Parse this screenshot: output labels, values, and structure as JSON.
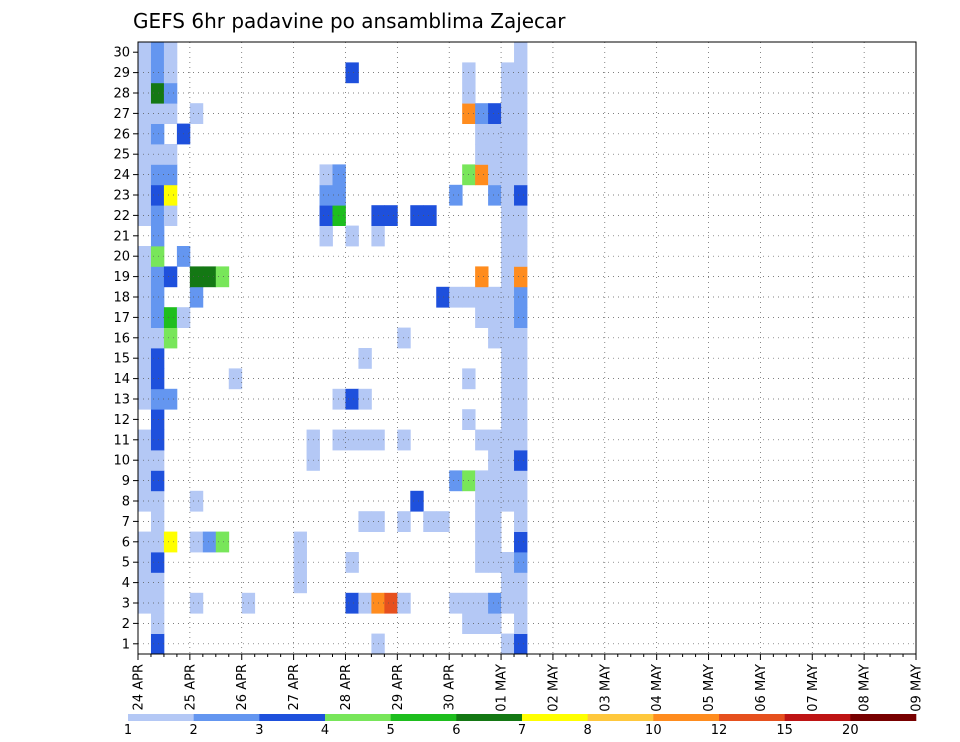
{
  "chart_data": {
    "type": "heatmap",
    "title": "GEFS 6hr padavine po ansamblima Zajecar",
    "xlabel": "",
    "ylabel": "",
    "x_tick_labels": [
      "24 APR",
      "25 APR",
      "26 APR",
      "27 APR",
      "28 APR",
      "29 APR",
      "30 APR",
      "01 MAY",
      "02 MAY",
      "03 MAY",
      "04 MAY",
      "05 MAY",
      "06 MAY",
      "07 MAY",
      "08 MAY",
      "09 MAY"
    ],
    "y_tick_labels": [
      "1",
      "2",
      "3",
      "4",
      "5",
      "6",
      "7",
      "8",
      "9",
      "10",
      "11",
      "12",
      "13",
      "14",
      "15",
      "16",
      "17",
      "18",
      "19",
      "20",
      "21",
      "22",
      "23",
      "24",
      "25",
      "26",
      "27",
      "28",
      "29",
      "30"
    ],
    "time_steps_per_day": 4,
    "xlim_steps": [
      0,
      60
    ],
    "ylim_members": [
      0.5,
      30.5
    ],
    "grid": true,
    "colorbar": {
      "labels": [
        "1",
        "2",
        "3",
        "4",
        "5",
        "6",
        "7",
        "8",
        "10",
        "12",
        "15",
        "20"
      ],
      "colors": [
        "#b4c8f5",
        "#6496f0",
        "#1e50dc",
        "#78e65a",
        "#1ebe1e",
        "#147814",
        "#ffff00",
        "#ffc83c",
        "#ff8c1e",
        "#e6501e",
        "#be1414",
        "#780000"
      ]
    },
    "cells": [
      [
        0,
        3,
        1
      ],
      [
        0,
        4,
        1
      ],
      [
        0,
        5,
        1
      ],
      [
        0,
        6,
        1
      ],
      [
        0,
        8,
        1
      ],
      [
        0,
        9,
        1
      ],
      [
        0,
        10,
        1
      ],
      [
        0,
        11,
        1
      ],
      [
        0,
        13,
        1
      ],
      [
        0,
        14,
        1
      ],
      [
        0,
        15,
        1
      ],
      [
        0,
        16,
        1
      ],
      [
        0,
        17,
        1
      ],
      [
        0,
        18,
        1
      ],
      [
        0,
        19,
        1
      ],
      [
        0,
        20,
        1
      ],
      [
        0,
        22,
        1
      ],
      [
        0,
        23,
        1
      ],
      [
        0,
        24,
        1
      ],
      [
        0,
        25,
        1
      ],
      [
        0,
        26,
        1
      ],
      [
        0,
        27,
        1
      ],
      [
        0,
        28,
        1
      ],
      [
        0,
        29,
        1
      ],
      [
        0,
        30,
        1
      ],
      [
        1,
        1,
        3
      ],
      [
        1,
        2,
        1
      ],
      [
        1,
        3,
        1
      ],
      [
        1,
        4,
        1
      ],
      [
        1,
        5,
        3
      ],
      [
        1,
        6,
        1
      ],
      [
        1,
        7,
        1
      ],
      [
        1,
        8,
        1
      ],
      [
        1,
        9,
        3
      ],
      [
        1,
        10,
        1
      ],
      [
        1,
        11,
        3
      ],
      [
        1,
        12,
        3
      ],
      [
        1,
        13,
        2
      ],
      [
        1,
        14,
        3
      ],
      [
        1,
        15,
        3
      ],
      [
        1,
        16,
        1
      ],
      [
        1,
        17,
        2
      ],
      [
        1,
        18,
        2
      ],
      [
        1,
        19,
        2
      ],
      [
        1,
        20,
        4
      ],
      [
        1,
        21,
        2
      ],
      [
        1,
        22,
        2
      ],
      [
        1,
        23,
        3
      ],
      [
        1,
        24,
        2
      ],
      [
        1,
        25,
        1
      ],
      [
        1,
        26,
        2
      ],
      [
        1,
        27,
        1
      ],
      [
        1,
        28,
        6
      ],
      [
        1,
        29,
        2
      ],
      [
        1,
        30,
        2
      ],
      [
        2,
        6,
        7
      ],
      [
        2,
        13,
        2
      ],
      [
        2,
        16,
        4
      ],
      [
        2,
        17,
        5
      ],
      [
        2,
        19,
        3
      ],
      [
        2,
        22,
        1
      ],
      [
        2,
        23,
        7
      ],
      [
        2,
        24,
        2
      ],
      [
        2,
        25,
        1
      ],
      [
        2,
        27,
        1
      ],
      [
        2,
        28,
        2
      ],
      [
        2,
        29,
        1
      ],
      [
        2,
        30,
        1
      ],
      [
        3,
        17,
        1
      ],
      [
        3,
        20,
        2
      ],
      [
        3,
        26,
        3
      ],
      [
        4,
        3,
        1
      ],
      [
        4,
        6,
        1
      ],
      [
        4,
        8,
        1
      ],
      [
        4,
        18,
        2
      ],
      [
        4,
        19,
        6
      ],
      [
        4,
        27,
        1
      ],
      [
        5,
        6,
        2
      ],
      [
        5,
        19,
        6
      ],
      [
        6,
        6,
        4
      ],
      [
        6,
        19,
        4
      ],
      [
        7,
        14,
        1
      ],
      [
        8,
        3,
        1
      ],
      [
        12,
        4,
        1
      ],
      [
        12,
        5,
        1
      ],
      [
        12,
        6,
        1
      ],
      [
        13,
        10,
        1
      ],
      [
        13,
        11,
        1
      ],
      [
        14,
        21,
        1
      ],
      [
        14,
        22,
        3
      ],
      [
        14,
        23,
        2
      ],
      [
        14,
        24,
        1
      ],
      [
        15,
        11,
        1
      ],
      [
        15,
        13,
        1
      ],
      [
        15,
        22,
        5
      ],
      [
        15,
        23,
        2
      ],
      [
        15,
        24,
        2
      ],
      [
        16,
        3,
        3
      ],
      [
        16,
        5,
        1
      ],
      [
        16,
        11,
        1
      ],
      [
        16,
        13,
        3
      ],
      [
        16,
        21,
        1
      ],
      [
        16,
        29,
        3
      ],
      [
        17,
        3,
        1
      ],
      [
        17,
        7,
        1
      ],
      [
        17,
        11,
        1
      ],
      [
        17,
        13,
        1
      ],
      [
        17,
        15,
        1
      ],
      [
        18,
        1,
        1
      ],
      [
        18,
        3,
        9
      ],
      [
        18,
        7,
        1
      ],
      [
        18,
        11,
        1
      ],
      [
        18,
        21,
        1
      ],
      [
        18,
        22,
        3
      ],
      [
        19,
        3,
        10
      ],
      [
        19,
        22,
        3
      ],
      [
        20,
        3,
        1
      ],
      [
        20,
        7,
        1
      ],
      [
        20,
        11,
        1
      ],
      [
        20,
        16,
        1
      ],
      [
        21,
        8,
        3
      ],
      [
        21,
        22,
        3
      ],
      [
        22,
        7,
        1
      ],
      [
        22,
        22,
        3
      ],
      [
        23,
        7,
        1
      ],
      [
        23,
        18,
        3
      ],
      [
        24,
        3,
        1
      ],
      [
        24,
        9,
        2
      ],
      [
        24,
        18,
        1
      ],
      [
        24,
        23,
        2
      ],
      [
        25,
        2,
        1
      ],
      [
        25,
        3,
        1
      ],
      [
        25,
        9,
        4
      ],
      [
        25,
        12,
        1
      ],
      [
        25,
        14,
        1
      ],
      [
        25,
        18,
        1
      ],
      [
        25,
        24,
        4
      ],
      [
        25,
        27,
        9
      ],
      [
        25,
        28,
        1
      ],
      [
        25,
        29,
        1
      ],
      [
        26,
        2,
        1
      ],
      [
        26,
        3,
        1
      ],
      [
        26,
        5,
        1
      ],
      [
        26,
        6,
        1
      ],
      [
        26,
        7,
        1
      ],
      [
        26,
        8,
        1
      ],
      [
        26,
        9,
        1
      ],
      [
        26,
        11,
        1
      ],
      [
        26,
        17,
        1
      ],
      [
        26,
        18,
        1
      ],
      [
        26,
        19,
        9
      ],
      [
        26,
        24,
        9
      ],
      [
        26,
        25,
        1
      ],
      [
        26,
        26,
        1
      ],
      [
        26,
        27,
        2
      ],
      [
        27,
        2,
        1
      ],
      [
        27,
        3,
        2
      ],
      [
        27,
        5,
        1
      ],
      [
        27,
        6,
        1
      ],
      [
        27,
        7,
        1
      ],
      [
        27,
        8,
        1
      ],
      [
        27,
        9,
        1
      ],
      [
        27,
        10,
        1
      ],
      [
        27,
        11,
        1
      ],
      [
        27,
        16,
        1
      ],
      [
        27,
        17,
        1
      ],
      [
        27,
        18,
        1
      ],
      [
        27,
        23,
        2
      ],
      [
        27,
        24,
        1
      ],
      [
        27,
        25,
        1
      ],
      [
        27,
        26,
        1
      ],
      [
        27,
        27,
        3
      ],
      [
        28,
        1,
        1
      ],
      [
        28,
        3,
        1
      ],
      [
        28,
        4,
        1
      ],
      [
        28,
        5,
        1
      ],
      [
        28,
        8,
        1
      ],
      [
        28,
        9,
        1
      ],
      [
        28,
        10,
        1
      ],
      [
        28,
        11,
        1
      ],
      [
        28,
        12,
        1
      ],
      [
        28,
        13,
        1
      ],
      [
        28,
        14,
        1
      ],
      [
        28,
        15,
        1
      ],
      [
        28,
        16,
        1
      ],
      [
        28,
        17,
        1
      ],
      [
        28,
        18,
        1
      ],
      [
        28,
        19,
        1
      ],
      [
        28,
        20,
        1
      ],
      [
        28,
        21,
        1
      ],
      [
        28,
        22,
        1
      ],
      [
        28,
        23,
        1
      ],
      [
        28,
        24,
        1
      ],
      [
        28,
        25,
        1
      ],
      [
        28,
        26,
        1
      ],
      [
        28,
        27,
        1
      ],
      [
        28,
        28,
        1
      ],
      [
        28,
        29,
        1
      ],
      [
        29,
        1,
        3
      ],
      [
        29,
        2,
        1
      ],
      [
        29,
        3,
        1
      ],
      [
        29,
        4,
        1
      ],
      [
        29,
        5,
        2
      ],
      [
        29,
        6,
        3
      ],
      [
        29,
        7,
        1
      ],
      [
        29,
        8,
        1
      ],
      [
        29,
        9,
        1
      ],
      [
        29,
        10,
        3
      ],
      [
        29,
        11,
        1
      ],
      [
        29,
        12,
        1
      ],
      [
        29,
        13,
        1
      ],
      [
        29,
        14,
        1
      ],
      [
        29,
        15,
        1
      ],
      [
        29,
        16,
        1
      ],
      [
        29,
        17,
        2
      ],
      [
        29,
        18,
        2
      ],
      [
        29,
        19,
        9
      ],
      [
        29,
        20,
        1
      ],
      [
        29,
        21,
        1
      ],
      [
        29,
        22,
        1
      ],
      [
        29,
        23,
        3
      ],
      [
        29,
        24,
        1
      ],
      [
        29,
        25,
        1
      ],
      [
        29,
        26,
        1
      ],
      [
        29,
        27,
        1
      ],
      [
        29,
        28,
        1
      ],
      [
        29,
        29,
        1
      ],
      [
        29,
        30,
        1
      ]
    ]
  }
}
